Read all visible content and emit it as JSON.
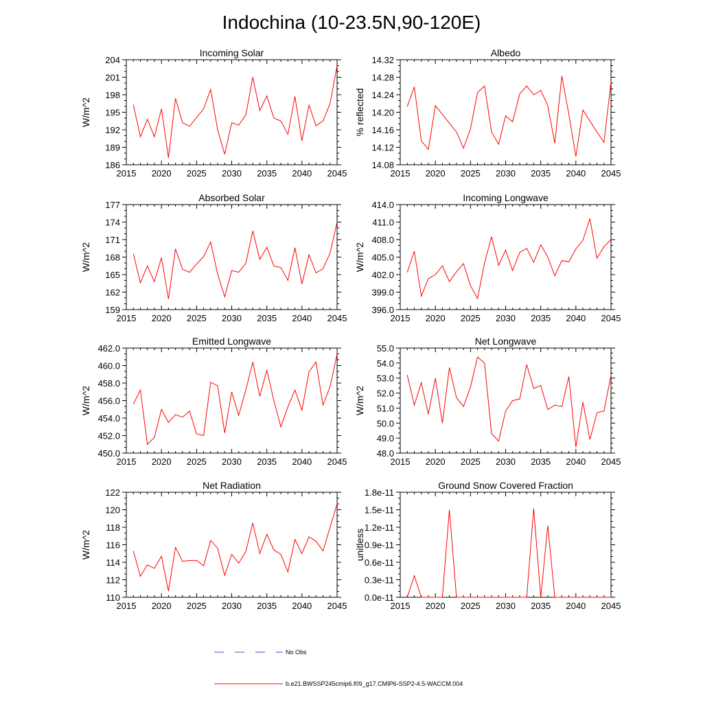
{
  "title": "Indochina (10-23.5N,90-120E)",
  "line_color": "#ff0000",
  "obs_color": "#4d4dcc",
  "legend": {
    "obs_label": "No Obs",
    "model_label": "b.e21.BWSSP245cmip6.f09_g17.CMIP6-SSP2-4.5-WACCM.004"
  },
  "chart_data": [
    {
      "type": "line",
      "title": "Incoming Solar",
      "ylabel": "W/m^2",
      "xlim": [
        2015,
        2045
      ],
      "ylim": [
        186,
        204
      ],
      "xticks": [
        "2015",
        "2020",
        "2025",
        "2030",
        "2035",
        "2040",
        "2045"
      ],
      "yticks": [
        "186",
        "189",
        "192",
        "195",
        "198",
        "201",
        "204"
      ],
      "x": [
        2016,
        2017,
        2018,
        2019,
        2020,
        2021,
        2022,
        2023,
        2024,
        2025,
        2026,
        2027,
        2028,
        2029,
        2030,
        2031,
        2032,
        2033,
        2034,
        2035,
        2036,
        2037,
        2038,
        2039,
        2040,
        2041,
        2042,
        2043,
        2044,
        2045
      ],
      "values": [
        196.3,
        190.8,
        193.8,
        190.8,
        195.6,
        187.2,
        197.4,
        193.2,
        192.6,
        194.1,
        195.6,
        198.9,
        192.0,
        187.8,
        193.2,
        192.8,
        194.5,
        201.0,
        195.3,
        197.8,
        194.0,
        193.5,
        191.2,
        197.7,
        190.1,
        196.2,
        192.7,
        193.5,
        196.5,
        203.0
      ]
    },
    {
      "type": "line",
      "title": "Albedo",
      "ylabel": "% reflected",
      "xlim": [
        2015,
        2045
      ],
      "ylim": [
        14.08,
        14.32
      ],
      "xticks": [
        "2015",
        "2020",
        "2025",
        "2030",
        "2035",
        "2040",
        "2045"
      ],
      "yticks": [
        "14.08",
        "14.12",
        "14.16",
        "14.20",
        "14.24",
        "14.28",
        "14.32"
      ],
      "x": [
        2016,
        2017,
        2018,
        2019,
        2020,
        2021,
        2022,
        2023,
        2024,
        2025,
        2026,
        2027,
        2028,
        2029,
        2030,
        2031,
        2032,
        2033,
        2034,
        2035,
        2036,
        2037,
        2038,
        2039,
        2040,
        2041,
        2042,
        2043,
        2044,
        2045
      ],
      "values": [
        14.213,
        14.258,
        14.135,
        14.115,
        14.215,
        14.195,
        14.175,
        14.155,
        14.118,
        14.162,
        14.245,
        14.26,
        14.155,
        14.127,
        14.192,
        14.178,
        14.242,
        14.26,
        14.24,
        14.25,
        14.215,
        14.129,
        14.283,
        14.195,
        14.099,
        14.205,
        14.18,
        14.155,
        14.131,
        14.27
      ]
    },
    {
      "type": "line",
      "title": "Absorbed Solar",
      "ylabel": "W/m^2",
      "xlim": [
        2015,
        2045
      ],
      "ylim": [
        159,
        177
      ],
      "xticks": [
        "2015",
        "2020",
        "2025",
        "2030",
        "2035",
        "2040",
        "2045"
      ],
      "yticks": [
        "159",
        "162",
        "165",
        "168",
        "171",
        "174",
        "177"
      ],
      "x": [
        2016,
        2017,
        2018,
        2019,
        2020,
        2021,
        2022,
        2023,
        2024,
        2025,
        2026,
        2027,
        2028,
        2029,
        2030,
        2031,
        2032,
        2033,
        2034,
        2035,
        2036,
        2037,
        2038,
        2039,
        2040,
        2041,
        2042,
        2043,
        2044,
        2045
      ],
      "values": [
        168.6,
        163.6,
        166.5,
        163.8,
        167.9,
        160.8,
        169.4,
        165.9,
        165.4,
        166.8,
        168.1,
        170.6,
        165.1,
        161.2,
        165.7,
        165.4,
        166.9,
        172.5,
        167.6,
        169.7,
        166.5,
        166.2,
        164.0,
        169.6,
        163.4,
        168.4,
        165.3,
        166.0,
        168.7,
        174.0
      ]
    },
    {
      "type": "line",
      "title": "Incoming Longwave",
      "ylabel": "W/m^2",
      "xlim": [
        2015,
        2045
      ],
      "ylim": [
        396.0,
        414.0
      ],
      "xticks": [
        "2015",
        "2020",
        "2025",
        "2030",
        "2035",
        "2040",
        "2045"
      ],
      "yticks": [
        "396.0",
        "399.0",
        "402.0",
        "405.0",
        "408.0",
        "411.0",
        "414.0"
      ],
      "x": [
        2016,
        2017,
        2018,
        2019,
        2020,
        2021,
        2022,
        2023,
        2024,
        2025,
        2026,
        2027,
        2028,
        2029,
        2030,
        2031,
        2032,
        2033,
        2034,
        2035,
        2036,
        2037,
        2038,
        2039,
        2040,
        2041,
        2042,
        2043,
        2044,
        2045
      ],
      "values": [
        402.4,
        406.0,
        398.3,
        401.3,
        402.0,
        403.5,
        400.8,
        402.5,
        403.9,
        400.1,
        397.9,
        404.0,
        408.5,
        403.6,
        406.2,
        402.7,
        405.8,
        406.5,
        404.1,
        407.1,
        405.0,
        401.8,
        404.4,
        404.2,
        406.4,
        407.9,
        411.6,
        404.8,
        406.8,
        408.0
      ]
    },
    {
      "type": "line",
      "title": "Emitted Longwave",
      "ylabel": "W/m^2",
      "xlim": [
        2015,
        2045
      ],
      "ylim": [
        450.0,
        462.0
      ],
      "xticks": [
        "2015",
        "2020",
        "2025",
        "2030",
        "2035",
        "2040",
        "2045"
      ],
      "yticks": [
        "450.0",
        "452.0",
        "454.0",
        "456.0",
        "458.0",
        "460.0",
        "462.0"
      ],
      "x": [
        2016,
        2017,
        2018,
        2019,
        2020,
        2021,
        2022,
        2023,
        2024,
        2025,
        2026,
        2027,
        2028,
        2029,
        2030,
        2031,
        2032,
        2033,
        2034,
        2035,
        2036,
        2037,
        2038,
        2039,
        2040,
        2041,
        2042,
        2043,
        2044,
        2045
      ],
      "values": [
        455.6,
        457.2,
        451.0,
        451.8,
        455.0,
        453.5,
        454.4,
        454.1,
        454.8,
        452.2,
        452.0,
        458.1,
        457.7,
        452.3,
        457.0,
        454.3,
        457.2,
        460.4,
        456.5,
        459.5,
        456.0,
        453.0,
        455.3,
        457.2,
        454.9,
        459.3,
        460.4,
        455.5,
        457.6,
        461.3
      ]
    },
    {
      "type": "line",
      "title": "Net Longwave",
      "ylabel": "W/m^2",
      "xlim": [
        2015,
        2045
      ],
      "ylim": [
        48.0,
        55.0
      ],
      "xticks": [
        "2015",
        "2020",
        "2025",
        "2030",
        "2035",
        "2040",
        "2045"
      ],
      "yticks": [
        "48.0",
        "49.0",
        "50.0",
        "51.0",
        "52.0",
        "53.0",
        "54.0",
        "55.0"
      ],
      "x": [
        2016,
        2017,
        2018,
        2019,
        2020,
        2021,
        2022,
        2023,
        2024,
        2025,
        2026,
        2027,
        2028,
        2029,
        2030,
        2031,
        2032,
        2033,
        2034,
        2035,
        2036,
        2037,
        2038,
        2039,
        2040,
        2041,
        2042,
        2043,
        2044,
        2045
      ],
      "values": [
        53.2,
        51.2,
        52.7,
        50.6,
        53.0,
        50.0,
        53.7,
        51.7,
        51.1,
        52.4,
        54.4,
        54.0,
        49.3,
        48.8,
        50.8,
        51.5,
        51.6,
        53.9,
        52.3,
        52.5,
        50.9,
        51.2,
        51.1,
        53.1,
        48.4,
        51.4,
        48.9,
        50.7,
        50.8,
        53.2
      ]
    },
    {
      "type": "line",
      "title": "Net Radiation",
      "ylabel": "W/m^2",
      "xlim": [
        2015,
        2045
      ],
      "ylim": [
        110,
        122
      ],
      "xticks": [
        "2015",
        "2020",
        "2025",
        "2030",
        "2035",
        "2040",
        "2045"
      ],
      "yticks": [
        "110",
        "112",
        "114",
        "116",
        "118",
        "120",
        "122"
      ],
      "x": [
        2016,
        2017,
        2018,
        2019,
        2020,
        2021,
        2022,
        2023,
        2024,
        2025,
        2026,
        2027,
        2028,
        2029,
        2030,
        2031,
        2032,
        2033,
        2034,
        2035,
        2036,
        2037,
        2038,
        2039,
        2040,
        2041,
        2042,
        2043,
        2044,
        2045
      ],
      "values": [
        115.3,
        112.4,
        113.7,
        113.3,
        114.7,
        110.7,
        115.7,
        114.1,
        114.2,
        114.2,
        113.6,
        116.5,
        115.6,
        112.5,
        114.9,
        113.9,
        115.2,
        118.5,
        115.0,
        117.2,
        115.4,
        114.9,
        112.9,
        116.6,
        115.0,
        116.9,
        116.4,
        115.3,
        118.0,
        120.7
      ]
    },
    {
      "type": "line",
      "title": "Ground Snow Covered Fraction",
      "ylabel": "unitless",
      "xlim": [
        2015,
        2045
      ],
      "ylim": [
        0.0,
        1.8e-11
      ],
      "xticks": [
        "2015",
        "2020",
        "2025",
        "2030",
        "2035",
        "2040",
        "2045"
      ],
      "yticks": [
        "0.0e-11",
        "0.3e-11",
        "0.6e-11",
        "0.9e-11",
        "1.2e-11",
        "1.5e-11",
        "1.8e-11"
      ],
      "x": [
        2016,
        2017,
        2018,
        2019,
        2020,
        2021,
        2022,
        2023,
        2024,
        2025,
        2026,
        2027,
        2028,
        2029,
        2030,
        2031,
        2032,
        2033,
        2034,
        2035,
        2036,
        2037,
        2038,
        2039,
        2040,
        2041,
        2042,
        2043,
        2044,
        2045
      ],
      "values": [
        0.0,
        3.7e-12,
        0.0,
        0.0,
        0.0,
        0.0,
        1.5e-11,
        0.0,
        0.0,
        0.0,
        0.0,
        0.0,
        0.0,
        0.0,
        0.0,
        0.0,
        0.0,
        0.0,
        1.52e-11,
        0.0,
        1.23e-11,
        0.0,
        0.0,
        0.0,
        0.0,
        0.0,
        0.0,
        0.0,
        0.0,
        0.0
      ]
    }
  ]
}
